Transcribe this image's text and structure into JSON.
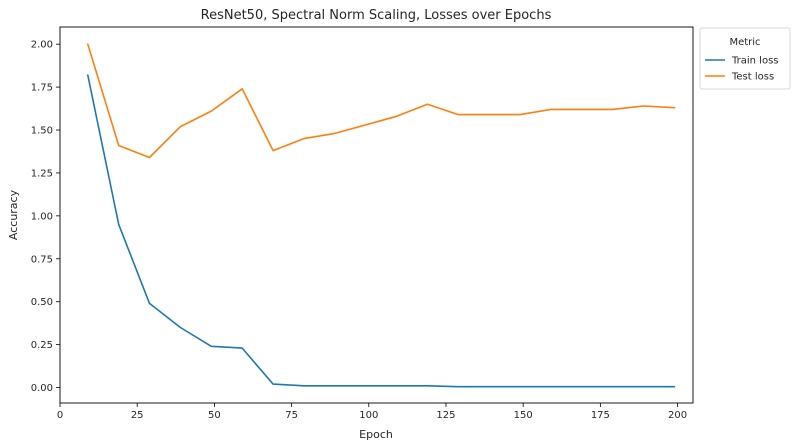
{
  "chart_data": {
    "type": "line",
    "title": "ResNet50, Spectral Norm Scaling, Losses over Epochs",
    "xlabel": "Epoch",
    "ylabel": "Accuracy",
    "xlim": [
      0,
      205
    ],
    "ylim": [
      -0.09,
      2.1
    ],
    "xticks": [
      0,
      25,
      50,
      75,
      100,
      125,
      150,
      175,
      200
    ],
    "xtick_labels": [
      "0",
      "25",
      "50",
      "75",
      "100",
      "125",
      "150",
      "175",
      "200"
    ],
    "yticks": [
      0.0,
      0.25,
      0.5,
      0.75,
      1.0,
      1.25,
      1.5,
      1.75,
      2.0
    ],
    "ytick_labels": [
      "0.00",
      "0.25",
      "0.50",
      "0.75",
      "1.00",
      "1.25",
      "1.50",
      "1.75",
      "2.00"
    ],
    "grid": false,
    "legend": {
      "title": "Metric",
      "placement": "outside-top-right"
    },
    "x": [
      9,
      19,
      29,
      39,
      49,
      59,
      69,
      79,
      89,
      99,
      109,
      119,
      129,
      139,
      149,
      159,
      169,
      179,
      189,
      199
    ],
    "series": [
      {
        "name": "Train loss",
        "color": "#1f77b4",
        "values": [
          1.82,
          0.95,
          0.49,
          0.35,
          0.24,
          0.23,
          0.02,
          0.01,
          0.01,
          0.01,
          0.01,
          0.01,
          0.005,
          0.005,
          0.005,
          0.005,
          0.005,
          0.005,
          0.005,
          0.005
        ]
      },
      {
        "name": "Test loss",
        "color": "#ff7f0e",
        "values": [
          2.0,
          1.41,
          1.34,
          1.52,
          1.61,
          1.74,
          1.38,
          1.45,
          1.48,
          1.53,
          1.58,
          1.65,
          1.59,
          1.59,
          1.59,
          1.62,
          1.62,
          1.62,
          1.64,
          1.63
        ]
      }
    ]
  }
}
